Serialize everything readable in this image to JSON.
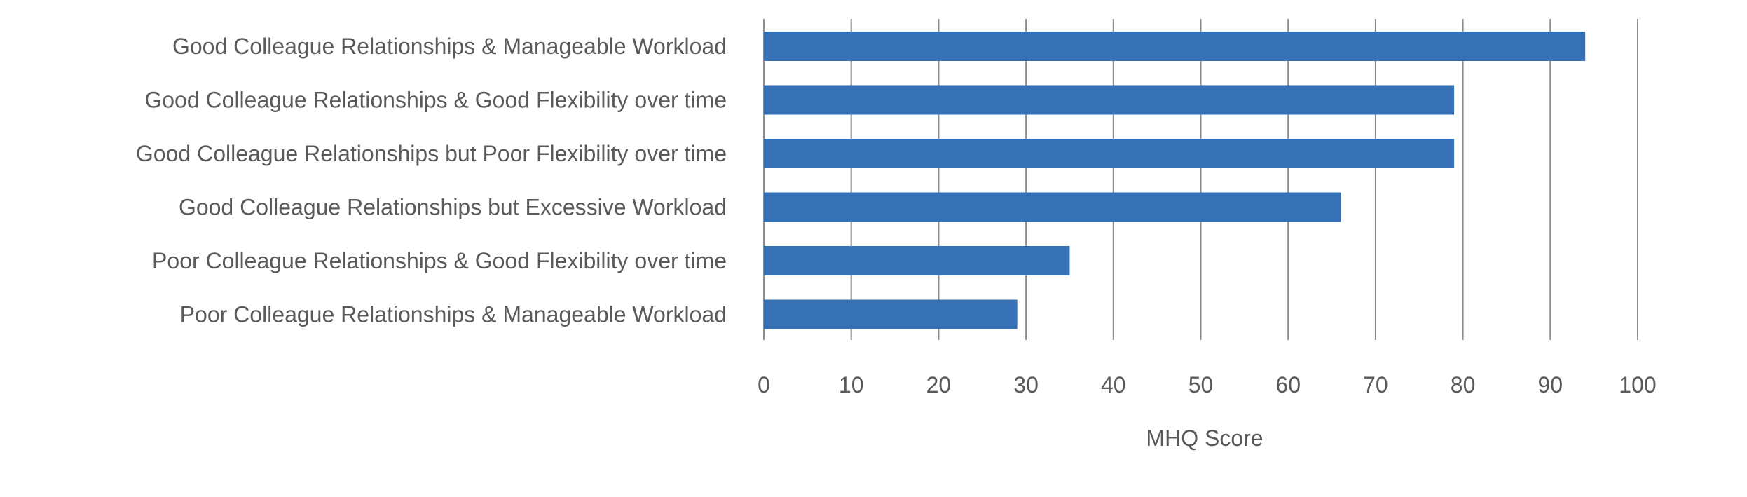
{
  "chart_data": {
    "type": "bar",
    "orientation": "horizontal",
    "title": "",
    "xlabel": "MHQ Score",
    "ylabel": "",
    "xlim": [
      0,
      100
    ],
    "x_ticks": [
      0,
      10,
      20,
      30,
      40,
      50,
      60,
      70,
      80,
      90,
      100
    ],
    "grid": "vertical",
    "legend": "none",
    "bar_color": "#3670b5",
    "categories": [
      "Good Colleague Relationships & Manageable Workload",
      "Good Colleague Relationships & Good Flexibility over time",
      "Good Colleague Relationships but Poor Flexibility over time",
      "Good Colleague Relationships but Excessive Workload",
      "Poor Colleague Relationships & Good Flexibility over time",
      "Poor Colleague Relationships & Manageable Workload"
    ],
    "values": [
      94,
      79,
      79,
      66,
      35,
      29
    ]
  }
}
